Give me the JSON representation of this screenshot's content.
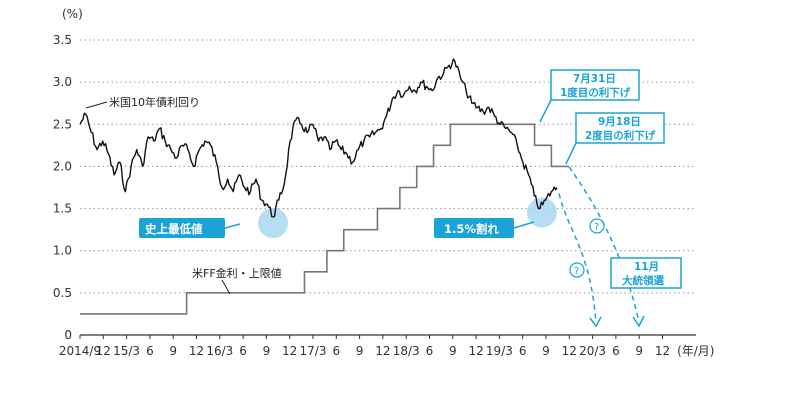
{
  "chart_data": {
    "type": "line",
    "y_unit": "(%)",
    "ylim": [
      0,
      3.5
    ],
    "y_ticks": [
      "0",
      "0.5",
      "1.0",
      "1.5",
      "2.0",
      "2.5",
      "3.0",
      "3.5"
    ],
    "x_ticks": [
      "2014/9",
      "12",
      "15/3",
      "6",
      "9",
      "12",
      "16/3",
      "6",
      "9",
      "12",
      "17/3",
      "6",
      "9",
      "12",
      "18/3",
      "6",
      "9",
      "12",
      "19/3",
      "6",
      "9",
      "12",
      "20/3",
      "6",
      "9",
      "12",
      "(年/月)"
    ],
    "grid": "horizontal dotted",
    "series": [
      {
        "name": "米国10年債利回り",
        "color": "#111111",
        "values": [
          2.5,
          2.62,
          2.4,
          2.2,
          2.3,
          2.15,
          1.9,
          2.05,
          1.7,
          2.0,
          2.2,
          2.0,
          2.35,
          2.3,
          2.45,
          2.3,
          2.2,
          2.1,
          2.25,
          2.2,
          2.0,
          2.2,
          2.3,
          2.25,
          2.05,
          1.75,
          1.85,
          1.7,
          1.9,
          1.75,
          1.7,
          1.85,
          1.6,
          1.55,
          1.4,
          1.6,
          1.8,
          2.3,
          2.55,
          2.5,
          2.4,
          2.5,
          2.3,
          2.35,
          2.2,
          2.3,
          2.2,
          2.15,
          2.05,
          2.2,
          2.3,
          2.35,
          2.4,
          2.45,
          2.6,
          2.8,
          2.9,
          2.85,
          2.95,
          2.9,
          3.0,
          2.95,
          2.9,
          3.05,
          3.1,
          3.2,
          3.25,
          3.05,
          2.9,
          2.75,
          2.7,
          2.65,
          2.7,
          2.6,
          2.5,
          2.45,
          2.4,
          2.25,
          2.05,
          1.9,
          1.65,
          1.5,
          1.6,
          1.7,
          1.75
        ]
      },
      {
        "name": "米FF金利・上限値",
        "color": "#777777",
        "values": [
          0.25,
          0.25,
          0.25,
          0.25,
          0.25,
          0.25,
          0.25,
          0.25,
          0.25,
          0.25,
          0.25,
          0.25,
          0.25,
          0.25,
          0.25,
          0.25,
          0.25,
          0.25,
          0.25,
          0.5,
          0.5,
          0.5,
          0.5,
          0.5,
          0.5,
          0.5,
          0.5,
          0.5,
          0.5,
          0.5,
          0.5,
          0.5,
          0.5,
          0.5,
          0.5,
          0.5,
          0.5,
          0.5,
          0.5,
          0.5,
          0.75,
          0.75,
          0.75,
          0.75,
          1.0,
          1.0,
          1.0,
          1.25,
          1.25,
          1.25,
          1.25,
          1.25,
          1.25,
          1.5,
          1.5,
          1.5,
          1.5,
          1.75,
          1.75,
          1.75,
          2.0,
          2.0,
          2.0,
          2.25,
          2.25,
          2.25,
          2.5,
          2.5,
          2.5,
          2.5,
          2.5,
          2.5,
          2.5,
          2.5,
          2.5,
          2.5,
          2.5,
          2.5,
          2.5,
          2.5,
          2.5,
          2.25,
          2.25,
          2.25,
          2.0,
          2.0
        ]
      }
    ],
    "annotations": {
      "series_label_1": "米国10年債利回り",
      "series_label_2": "米FF金利・上限値",
      "record_low": "史上最低値",
      "break_15": "1.5%割れ",
      "cut1_line1": "7月31日",
      "cut1_line2": "1度目の利下げ",
      "cut2_line1": "9月18日",
      "cut2_line2": "2度目の利下げ",
      "election_line1": "11月",
      "election_line2": "大統領選",
      "question_mark": "?"
    },
    "colors": {
      "accent": "#1aa3d6",
      "highlight": "#a8d8f0",
      "grid": "#999999"
    }
  }
}
